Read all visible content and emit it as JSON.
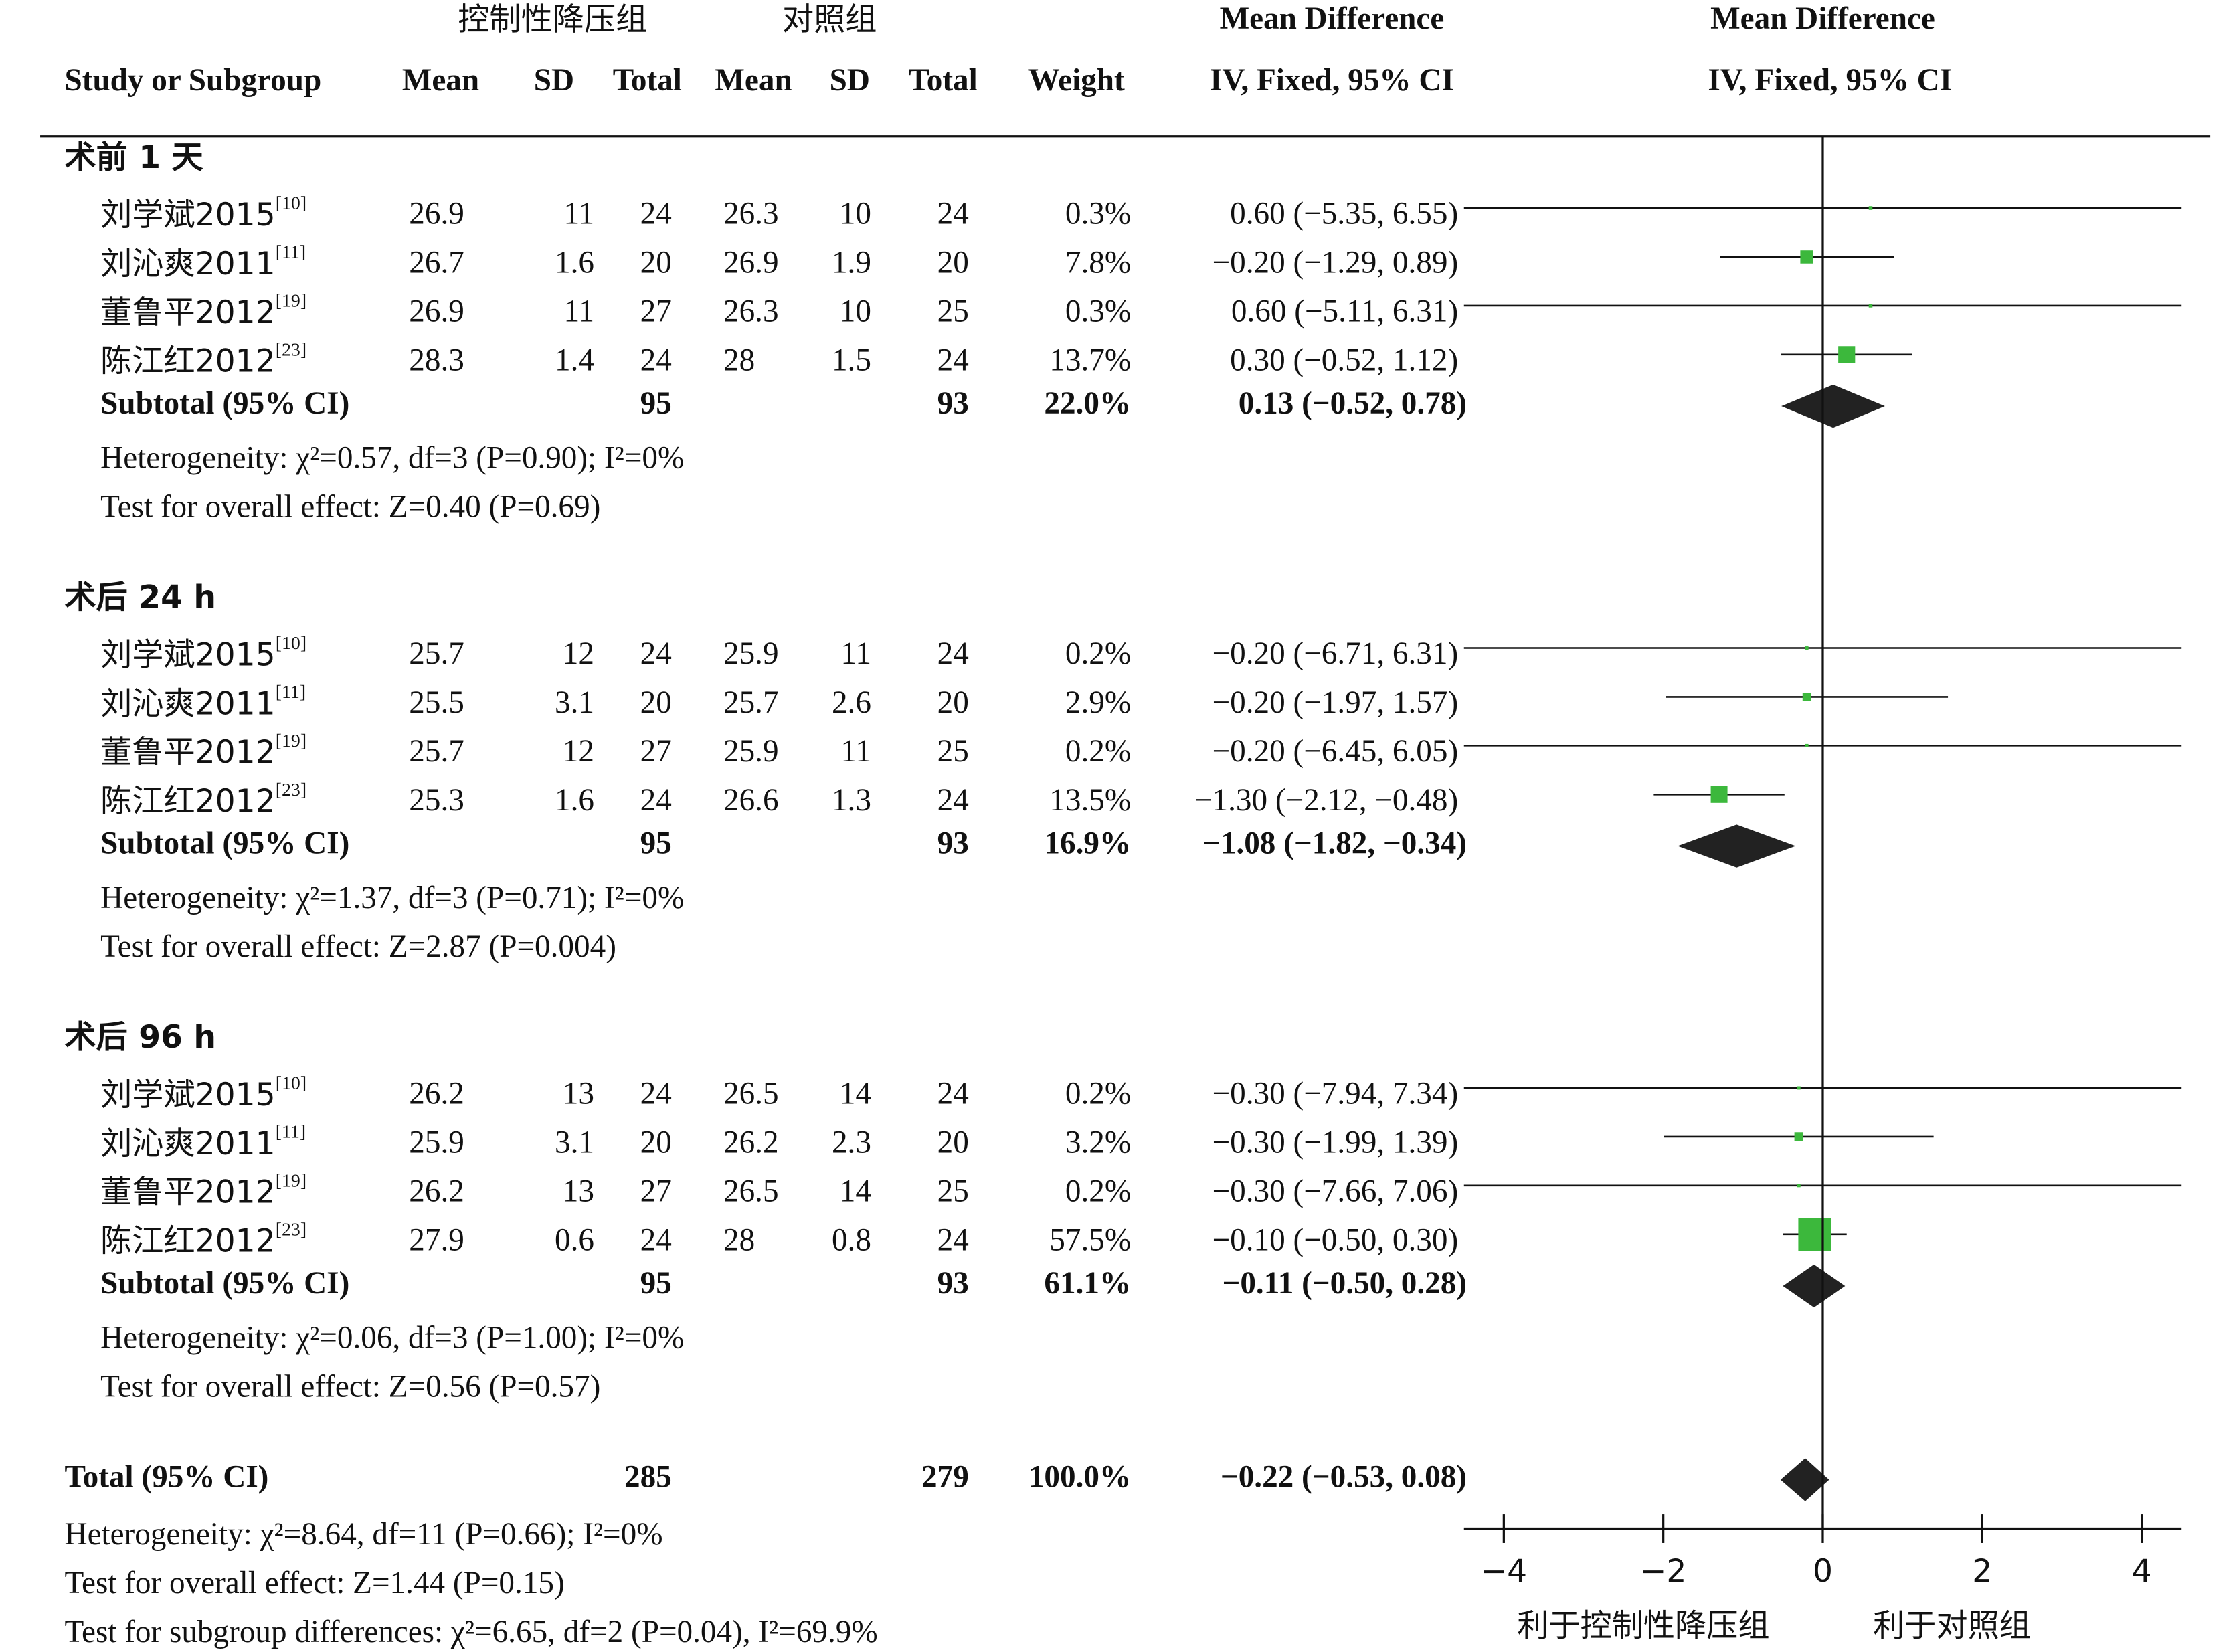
{
  "chart_data": {
    "type": "forest",
    "group_labels": [
      "控制性降压组",
      "对照组"
    ],
    "effect_titles": [
      "Mean Difference",
      "Mean Difference"
    ],
    "columns": [
      "Study or Subgroup",
      "Mean",
      "SD",
      "Total",
      "Mean",
      "SD",
      "Total",
      "Weight",
      "IV, Fixed, 95% CI",
      "IV, Fixed, 95% CI"
    ],
    "subgroups": [
      {
        "name": "术前 1 天",
        "studies": [
          {
            "study": "刘学斌2015",
            "ref": "[10]",
            "values": [
              26.9,
              11,
              24,
              26.3,
              10,
              24
            ],
            "weight": 0.3,
            "weight_label": "0.3%",
            "md": 0.6,
            "ci": [
              -5.35,
              6.55
            ],
            "ci_label": "0.60 (−5.35, 6.55)"
          },
          {
            "study": "刘沁爽2011",
            "ref": "[11]",
            "values": [
              26.7,
              1.6,
              20,
              26.9,
              1.9,
              20
            ],
            "weight": 7.8,
            "weight_label": "7.8%",
            "md": -0.2,
            "ci": [
              -1.29,
              0.89
            ],
            "ci_label": "−0.20 (−1.29, 0.89)"
          },
          {
            "study": "董鲁平2012",
            "ref": "[19]",
            "values": [
              26.9,
              11,
              27,
              26.3,
              10,
              25
            ],
            "weight": 0.3,
            "weight_label": "0.3%",
            "md": 0.6,
            "ci": [
              -5.11,
              6.31
            ],
            "ci_label": "0.60 (−5.11, 6.31)"
          },
          {
            "study": "陈江红2012",
            "ref": "[23]",
            "values": [
              28.3,
              1.4,
              24,
              28,
              1.5,
              24
            ],
            "weight": 13.7,
            "weight_label": "13.7%",
            "md": 0.3,
            "ci": [
              -0.52,
              1.12
            ],
            "ci_label": "0.30 (−0.52, 1.12)"
          }
        ],
        "subtotal": {
          "label": "Subtotal (95% CI)",
          "totals": [
            95,
            93
          ],
          "weight": 22.0,
          "weight_label": "22.0%",
          "md": 0.13,
          "ci": [
            -0.52,
            0.78
          ],
          "ci_label": "0.13 (−0.52, 0.78)"
        },
        "heterogeneity": "Heterogeneity: χ²=0.57, df=3 (P=0.90); I²=0%",
        "overall_effect": "Test for overall effect: Z=0.40 (P=0.69)"
      },
      {
        "name": "术后 24 h",
        "studies": [
          {
            "study": "刘学斌2015",
            "ref": "[10]",
            "values": [
              25.7,
              12,
              24,
              25.9,
              11,
              24
            ],
            "weight": 0.2,
            "weight_label": "0.2%",
            "md": -0.2,
            "ci": [
              -6.71,
              6.31
            ],
            "ci_label": "−0.20 (−6.71, 6.31)"
          },
          {
            "study": "刘沁爽2011",
            "ref": "[11]",
            "values": [
              25.5,
              3.1,
              20,
              25.7,
              2.6,
              20
            ],
            "weight": 2.9,
            "weight_label": "2.9%",
            "md": -0.2,
            "ci": [
              -1.97,
              1.57
            ],
            "ci_label": "−0.20 (−1.97, 1.57)"
          },
          {
            "study": "董鲁平2012",
            "ref": "[19]",
            "values": [
              25.7,
              12,
              27,
              25.9,
              11,
              25
            ],
            "weight": 0.2,
            "weight_label": "0.2%",
            "md": -0.2,
            "ci": [
              -6.45,
              6.05
            ],
            "ci_label": "−0.20 (−6.45, 6.05)"
          },
          {
            "study": "陈江红2012",
            "ref": "[23]",
            "values": [
              25.3,
              1.6,
              24,
              26.6,
              1.3,
              24
            ],
            "weight": 13.5,
            "weight_label": "13.5%",
            "md": -1.3,
            "ci": [
              -2.12,
              -0.48
            ],
            "ci_label": "−1.30 (−2.12, −0.48)"
          }
        ],
        "subtotal": {
          "label": "Subtotal (95% CI)",
          "totals": [
            95,
            93
          ],
          "weight": 16.9,
          "weight_label": "16.9%",
          "md": -1.08,
          "ci": [
            -1.82,
            -0.34
          ],
          "ci_label": "−1.08 (−1.82, −0.34)"
        },
        "heterogeneity": "Heterogeneity: χ²=1.37, df=3 (P=0.71); I²=0%",
        "overall_effect": "Test for overall effect: Z=2.87 (P=0.004)"
      },
      {
        "name": "术后 96 h",
        "studies": [
          {
            "study": "刘学斌2015",
            "ref": "[10]",
            "values": [
              26.2,
              13,
              24,
              26.5,
              14,
              24
            ],
            "weight": 0.2,
            "weight_label": "0.2%",
            "md": -0.3,
            "ci": [
              -7.94,
              7.34
            ],
            "ci_label": "−0.30 (−7.94, 7.34)"
          },
          {
            "study": "刘沁爽2011",
            "ref": "[11]",
            "values": [
              25.9,
              3.1,
              20,
              26.2,
              2.3,
              20
            ],
            "weight": 3.2,
            "weight_label": "3.2%",
            "md": -0.3,
            "ci": [
              -1.99,
              1.39
            ],
            "ci_label": "−0.30 (−1.99, 1.39)"
          },
          {
            "study": "董鲁平2012",
            "ref": "[19]",
            "values": [
              26.2,
              13,
              27,
              26.5,
              14,
              25
            ],
            "weight": 0.2,
            "weight_label": "0.2%",
            "md": -0.3,
            "ci": [
              -7.66,
              7.06
            ],
            "ci_label": "−0.30 (−7.66, 7.06)"
          },
          {
            "study": "陈江红2012",
            "ref": "[23]",
            "values": [
              27.9,
              0.6,
              24,
              28,
              0.8,
              24
            ],
            "weight": 57.5,
            "weight_label": "57.5%",
            "md": -0.1,
            "ci": [
              -0.5,
              0.3
            ],
            "ci_label": "−0.10 (−0.50, 0.30)"
          }
        ],
        "subtotal": {
          "label": "Subtotal (95% CI)",
          "totals": [
            95,
            93
          ],
          "weight": 61.1,
          "weight_label": "61.1%",
          "md": -0.11,
          "ci": [
            -0.5,
            0.28
          ],
          "ci_label": "−0.11 (−0.50, 0.28)"
        },
        "heterogeneity": "Heterogeneity: χ²=0.06, df=3 (P=1.00); I²=0%",
        "overall_effect": "Test for overall effect: Z=0.56 (P=0.57)"
      }
    ],
    "total": {
      "label": "Total (95% CI)",
      "totals": [
        285,
        279
      ],
      "weight": 100,
      "weight_label": "100.0%",
      "md": -0.22,
      "ci": [
        -0.53,
        0.08
      ],
      "ci_label": "−0.22 (−0.53, 0.08)"
    },
    "heterogeneity": "Heterogeneity: χ²=8.64, df=11 (P=0.66); I²=0%",
    "overall_effect": "Test for overall effect: Z=1.44 (P=0.15)",
    "subgroup_differences": "Test for subgroup differences: χ²=6.65, df=2 (P=0.04), I²=69.9%",
    "xlim": [
      -4.5,
      4.5
    ],
    "xticks": [
      {
        "value": -4,
        "label": "−4"
      },
      {
        "value": -2,
        "label": "−2"
      },
      0,
      2,
      4
    ],
    "x_labels": [
      "利于控制性降压组",
      "利于对照组"
    ],
    "marker_color": "#3cb83c",
    "diamond_color": "#222222"
  }
}
